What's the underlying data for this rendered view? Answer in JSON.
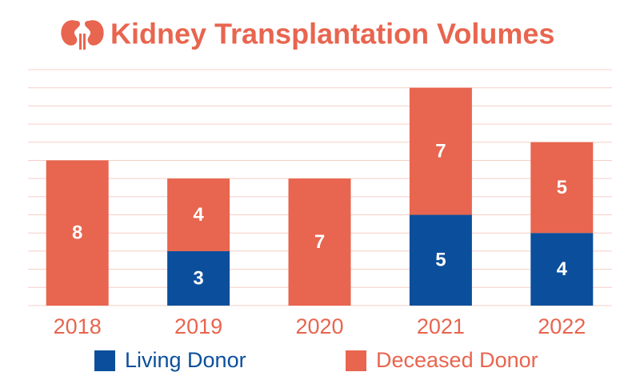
{
  "chart_data": {
    "type": "stacked_bar",
    "title": "Kidney Transplantation Volumes",
    "categories": [
      "2018",
      "2019",
      "2020",
      "2021",
      "2022"
    ],
    "series": [
      {
        "name": "Living Donor",
        "color": "#0b4f9c",
        "values": [
          null,
          3,
          null,
          5,
          4
        ]
      },
      {
        "name": "Deceased Donor",
        "color": "#e8654f",
        "values": [
          8,
          4,
          7,
          7,
          5
        ]
      }
    ],
    "ylim": [
      0,
      13
    ],
    "yticks": [
      0,
      1,
      2,
      3,
      4,
      5,
      6,
      7,
      8,
      9,
      10,
      11,
      12,
      13
    ],
    "grid": true,
    "legend": "bottom"
  }
}
